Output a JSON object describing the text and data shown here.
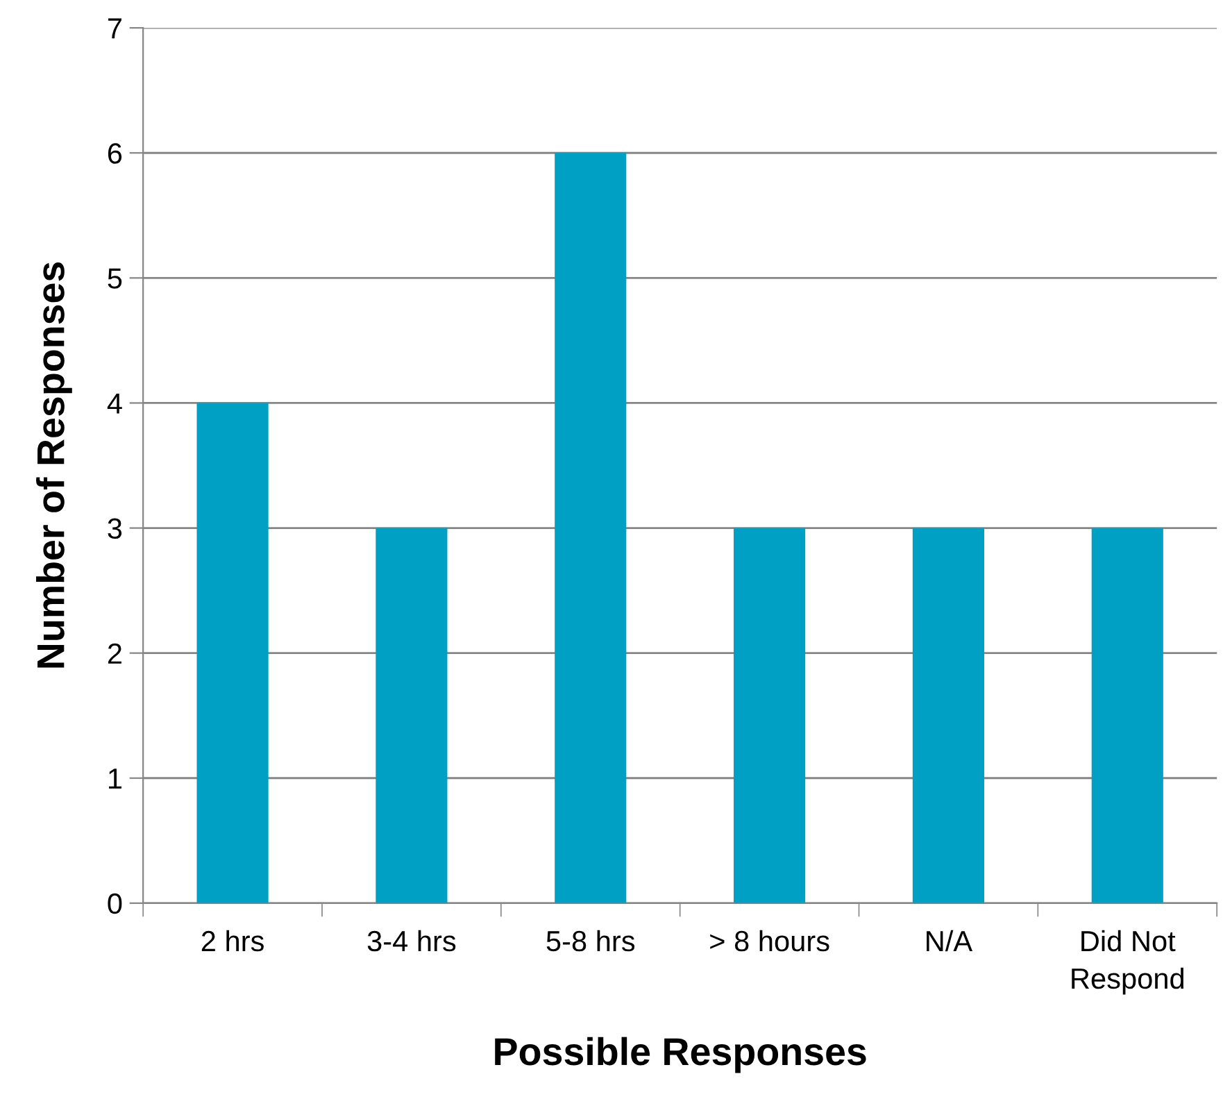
{
  "chart_data": {
    "type": "bar",
    "xlabel": "Possible Responses",
    "ylabel": "Number of Responses",
    "categories": [
      "2 hrs",
      "3-4 hrs",
      "5-8 hrs",
      "> 8 hours",
      "N/A",
      "Did Not\nRespond"
    ],
    "values": [
      4,
      3,
      6,
      3,
      3,
      3
    ],
    "color": "#00a0c4",
    "ylim": [
      0,
      7
    ],
    "yticks": [
      0,
      1,
      2,
      3,
      4,
      5,
      6,
      7
    ],
    "grid": "y",
    "legend": false
  }
}
